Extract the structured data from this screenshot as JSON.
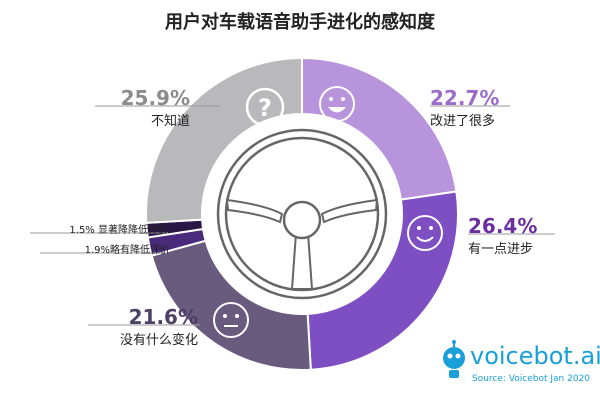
{
  "chart_data": {
    "type": "pie",
    "title": "用户对车载语音助手进化的感知度",
    "slices": [
      {
        "label": "改进了很多",
        "value": 22.7,
        "display": "22.7%",
        "color": "#b894dd"
      },
      {
        "label": "有一点进步",
        "value": 26.4,
        "display": "26.4%",
        "color": "#7d4fc2"
      },
      {
        "label": "没有什么变化",
        "value": 21.6,
        "display": "21.6%",
        "color": "#695b7e"
      },
      {
        "label": "略有降低评价",
        "value": 1.9,
        "display": "1.9%",
        "color": "#4a2a7a"
      },
      {
        "label": "显著降降低评价",
        "value": 1.5,
        "display": "1.5%",
        "color": "#2a1746"
      },
      {
        "label": "不知道",
        "value": 25.9,
        "display": "25.9%",
        "color": "#b9b9bb"
      }
    ]
  },
  "brand": {
    "name": "voicebot.ai",
    "tm": "™",
    "source": "Source: Voicebot Jan 2020"
  },
  "icons": {
    "improved": "happy-face-icon",
    "some": "smile-face-icon",
    "nochange": "neutral-face-icon",
    "unknown": "question-icon",
    "center": "steering-wheel-icon"
  }
}
